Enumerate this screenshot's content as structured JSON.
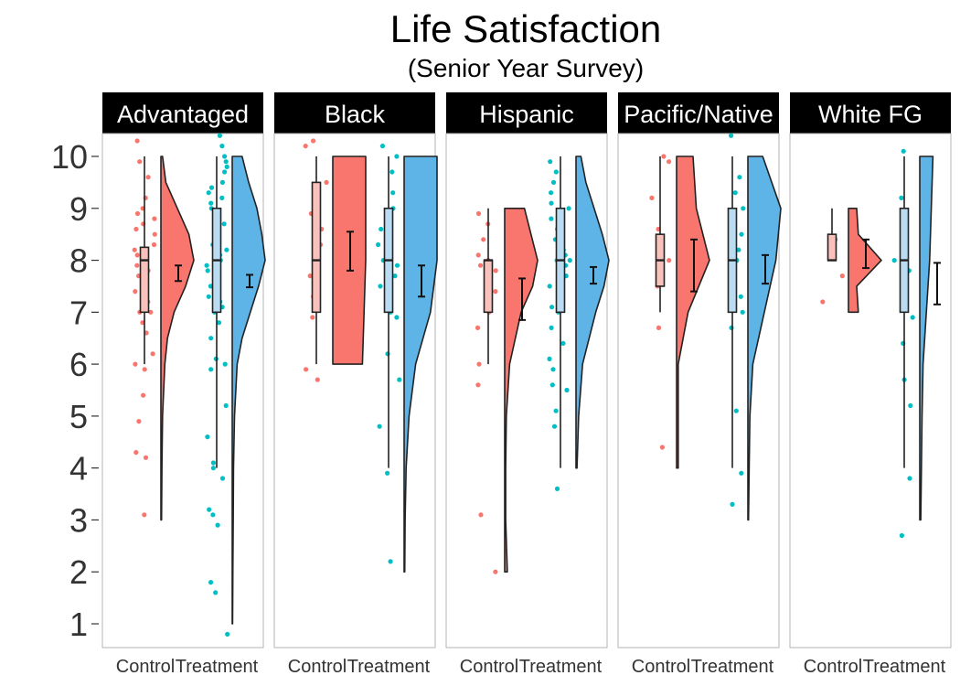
{
  "chart_data": {
    "type": "raincloud",
    "title": "Life Satisfaction",
    "subtitle": "(Senior Year Survey)",
    "xlabel": "",
    "ylabel": "",
    "ylim": [
      1,
      10
    ],
    "yticks": [
      1,
      2,
      3,
      4,
      5,
      6,
      7,
      8,
      9,
      10
    ],
    "categories": [
      "Control",
      "Treatment"
    ],
    "colors": {
      "Control": "#f8766d",
      "Treatment": "#00bfc4",
      "Control_fill": "#f8766d",
      "Treatment_fill": "#5eb4e6"
    },
    "grid": false,
    "legend": "none",
    "panels": [
      {
        "name": "Advantaged",
        "groups": [
          {
            "name": "Control",
            "box": {
              "min": 6,
              "q1": 7,
              "median": 8,
              "q3": 8.25,
              "max": 10
            },
            "mean": 7.75,
            "ci": [
              7.6,
              7.9
            ],
            "range": [
              3,
              10
            ],
            "density": [
              [
                3,
                0.02
              ],
              [
                4,
                0.03
              ],
              [
                5,
                0.05
              ],
              [
                6,
                0.12
              ],
              [
                6.5,
                0.2
              ],
              [
                7,
                0.4
              ],
              [
                7.5,
                0.75
              ],
              [
                8,
                1
              ],
              [
                8.5,
                0.85
              ],
              [
                9,
                0.5
              ],
              [
                9.5,
                0.15
              ],
              [
                10,
                0.05
              ]
            ],
            "points": [
              3.1,
              4.2,
              4.3,
              4.9,
              5.4,
              5.9,
              6.0,
              6.2,
              6.6,
              6.8,
              7.0,
              7.0,
              7.2,
              7.4,
              7.5,
              7.7,
              7.8,
              7.9,
              8.0,
              8.0,
              8.1,
              8.2,
              8.3,
              8.5,
              8.6,
              8.7,
              8.8,
              8.9,
              9.0,
              9.2,
              9.6,
              9.9,
              10.3
            ]
          },
          {
            "name": "Treatment",
            "box": {
              "min": 4,
              "q1": 7,
              "median": 8,
              "q3": 9,
              "max": 10
            },
            "mean": 7.6,
            "ci": [
              7.48,
              7.72
            ],
            "range": [
              1,
              10
            ],
            "density": [
              [
                1,
                0.01
              ],
              [
                2,
                0.02
              ],
              [
                3,
                0.03
              ],
              [
                4,
                0.04
              ],
              [
                5,
                0.07
              ],
              [
                6,
                0.15
              ],
              [
                6.5,
                0.3
              ],
              [
                7,
                0.55
              ],
              [
                7.5,
                0.8
              ],
              [
                8,
                1
              ],
              [
                8.5,
                0.9
              ],
              [
                9,
                0.75
              ],
              [
                9.5,
                0.5
              ],
              [
                10,
                0.3
              ]
            ],
            "points": [
              0.8,
              1.6,
              1.8,
              2.9,
              3.1,
              3.2,
              3.8,
              4.0,
              4.1,
              4.6,
              5.2,
              5.9,
              6.0,
              6.1,
              6.5,
              6.8,
              7.0,
              7.1,
              7.2,
              7.3,
              7.5,
              7.6,
              7.8,
              7.9,
              8.0,
              8.0,
              8.1,
              8.2,
              8.3,
              8.4,
              8.5,
              8.6,
              8.7,
              8.8,
              8.9,
              9.0,
              9.1,
              9.2,
              9.3,
              9.4,
              9.5,
              9.7,
              9.8,
              9.9,
              10.0,
              10.2,
              10.4
            ]
          }
        ]
      },
      {
        "name": "Black",
        "groups": [
          {
            "name": "Control",
            "box": {
              "min": 6,
              "q1": 7,
              "median": 8,
              "q3": 9.5,
              "max": 10
            },
            "mean": 8.3,
            "ci": [
              7.8,
              8.55
            ],
            "range": [
              6,
              10
            ],
            "density": [
              [
                6,
                0.9
              ],
              [
                7,
                0.95
              ],
              [
                8,
                1
              ],
              [
                9,
                1
              ],
              [
                10,
                1
              ]
            ],
            "points": [
              5.7,
              5.9,
              6.9,
              7.3,
              7.7,
              8.0,
              8.3,
              8.6,
              8.9,
              9.5,
              10.2,
              10.3
            ]
          },
          {
            "name": "Treatment",
            "box": {
              "min": 4,
              "q1": 7,
              "median": 8,
              "q3": 9,
              "max": 10
            },
            "mean": 7.6,
            "ci": [
              7.3,
              7.9
            ],
            "range": [
              2,
              10
            ],
            "density": [
              [
                2,
                0.02
              ],
              [
                3,
                0.03
              ],
              [
                4,
                0.06
              ],
              [
                5,
                0.15
              ],
              [
                6,
                0.35
              ],
              [
                7,
                0.8
              ],
              [
                8,
                1
              ],
              [
                9,
                1
              ],
              [
                10,
                1
              ]
            ],
            "points": [
              2.2,
              3.9,
              4.8,
              5.7,
              6.2,
              6.9,
              7.0,
              7.2,
              7.5,
              7.7,
              7.9,
              8.0,
              8.3,
              8.6,
              9.0,
              9.3,
              9.7,
              10.0,
              10.2
            ]
          }
        ]
      },
      {
        "name": "Hispanic",
        "groups": [
          {
            "name": "Control",
            "box": {
              "min": 6,
              "q1": 7,
              "median": 8,
              "q3": 8,
              "max": 9
            },
            "mean": 7.3,
            "ci": [
              6.85,
              7.65
            ],
            "range": [
              2,
              9
            ],
            "density": [
              [
                2,
                0.08
              ],
              [
                3,
                0.03
              ],
              [
                4,
                0.03
              ],
              [
                5,
                0.05
              ],
              [
                6,
                0.15
              ],
              [
                7,
                0.5
              ],
              [
                7.5,
                0.85
              ],
              [
                8,
                1
              ],
              [
                8.5,
                0.8
              ],
              [
                9,
                0.6
              ]
            ],
            "points": [
              2.0,
              3.1,
              5.6,
              6.0,
              6.7,
              7.0,
              7.4,
              7.8,
              7.9,
              8.0,
              8.1,
              8.4,
              8.7,
              8.9
            ]
          },
          {
            "name": "Treatment",
            "box": {
              "min": 4,
              "q1": 7,
              "median": 8,
              "q3": 9,
              "max": 10
            },
            "mean": 7.7,
            "ci": [
              7.55,
              7.87
            ],
            "range": [
              4,
              10
            ],
            "density": [
              [
                4,
                0.03
              ],
              [
                5,
                0.08
              ],
              [
                6,
                0.2
              ],
              [
                7,
                0.6
              ],
              [
                7.5,
                0.85
              ],
              [
                8,
                1
              ],
              [
                8.5,
                0.8
              ],
              [
                9,
                0.55
              ],
              [
                9.5,
                0.3
              ],
              [
                10,
                0.15
              ]
            ],
            "points": [
              3.6,
              4.8,
              5.1,
              5.5,
              5.6,
              5.9,
              6.1,
              6.4,
              6.7,
              7.0,
              7.1,
              7.2,
              7.4,
              7.5,
              7.7,
              7.8,
              7.9,
              8.0,
              8.0,
              8.1,
              8.2,
              8.4,
              8.6,
              8.8,
              9.0,
              9.1,
              9.3,
              9.5,
              9.7,
              9.9
            ]
          }
        ]
      },
      {
        "name": "Pacific/Native",
        "groups": [
          {
            "name": "Control",
            "box": {
              "min": 7,
              "q1": 7.5,
              "median": 8,
              "q3": 8.5,
              "max": 10
            },
            "mean": 7.9,
            "ci": [
              7.4,
              8.4
            ],
            "range": [
              4,
              10
            ],
            "density": [
              [
                4,
                0.05
              ],
              [
                5,
                0.05
              ],
              [
                6,
                0.05
              ],
              [
                7,
                0.35
              ],
              [
                8,
                1
              ],
              [
                9,
                0.6
              ],
              [
                10,
                0.5
              ]
            ],
            "points": [
              4.4,
              6.7,
              7.5,
              7.7,
              8.0,
              8.3,
              8.6,
              9.2,
              9.9,
              10.0
            ]
          },
          {
            "name": "Treatment",
            "box": {
              "min": 4,
              "q1": 7,
              "median": 8,
              "q3": 9,
              "max": 10
            },
            "mean": 7.8,
            "ci": [
              7.55,
              8.1
            ],
            "range": [
              3,
              10
            ],
            "density": [
              [
                3,
                0.02
              ],
              [
                4,
                0.04
              ],
              [
                5,
                0.06
              ],
              [
                6,
                0.15
              ],
              [
                7,
                0.5
              ],
              [
                8,
                0.85
              ],
              [
                9,
                1
              ],
              [
                10,
                0.45
              ]
            ],
            "points": [
              3.3,
              3.9,
              5.1,
              6.7,
              7.0,
              7.3,
              7.6,
              7.9,
              8.0,
              8.2,
              8.5,
              8.8,
              9.0,
              9.3,
              9.6,
              10.4
            ]
          }
        ]
      },
      {
        "name": "White FG",
        "groups": [
          {
            "name": "Control",
            "box": {
              "min": 8,
              "q1": 8,
              "median": 8,
              "q3": 8.5,
              "max": 9
            },
            "mean": 8.1,
            "ci": [
              7.85,
              8.4
            ],
            "range": [
              7,
              9
            ],
            "density": [
              [
                7,
                0.3
              ],
              [
                7.5,
                0.25
              ],
              [
                8,
                1
              ],
              [
                8.5,
                0.3
              ],
              [
                9,
                0.25
              ]
            ],
            "points": [
              7.2,
              7.7,
              8.3,
              8.4
            ]
          },
          {
            "name": "Treatment",
            "box": {
              "min": 4,
              "q1": 7,
              "median": 8,
              "q3": 9,
              "max": 10
            },
            "mean": 7.55,
            "ci": [
              7.15,
              7.95
            ],
            "range": [
              3,
              10
            ],
            "density": [
              [
                3,
                0.03
              ],
              [
                4,
                0.05
              ],
              [
                5,
                0.07
              ],
              [
                6,
                0.1
              ],
              [
                7,
                0.2
              ],
              [
                8,
                0.3
              ],
              [
                9,
                0.35
              ],
              [
                10,
                0.4
              ]
            ],
            "points": [
              2.7,
              3.8,
              5.2,
              5.7,
              6.4,
              6.9,
              7.8,
              8.0,
              9.2,
              10.1
            ]
          }
        ]
      }
    ]
  }
}
